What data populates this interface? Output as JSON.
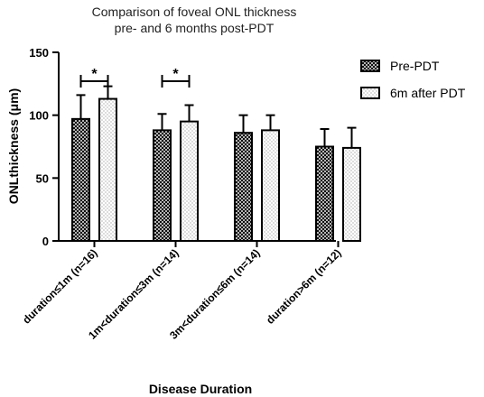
{
  "chart_data": {
    "type": "bar",
    "title": "Comparison of foveal ONL thickness",
    "subtitle": "pre- and 6 months post-PDT",
    "ylabel": "ONLthickness (μm)",
    "xlabel": "Disease Duration",
    "ylim": [
      0,
      150
    ],
    "yticks": [
      "0",
      "50",
      "100",
      "150"
    ],
    "categories": [
      "duration≤1m (n=16)",
      "1m<duration≤3m (n=14)",
      "3m<duration≤6m (n=14)",
      "duration>6m (n=12)"
    ],
    "series": [
      {
        "name": "Pre-PDT",
        "pattern": "crosshatch",
        "values": [
          97,
          88,
          86,
          75
        ],
        "errors": [
          19,
          13,
          14,
          14
        ]
      },
      {
        "name": "6m after PDT",
        "pattern": "dots",
        "values": [
          113,
          95,
          88,
          74
        ],
        "errors": [
          10,
          13,
          12,
          16
        ]
      }
    ],
    "significance": [
      {
        "category_index": 0,
        "label": "*"
      },
      {
        "category_index": 1,
        "label": "*"
      }
    ],
    "legend_position": "top-right",
    "grid": false
  }
}
